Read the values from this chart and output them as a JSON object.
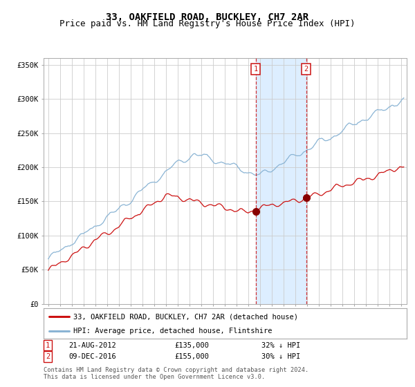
{
  "title": "33, OAKFIELD ROAD, BUCKLEY, CH7 2AR",
  "subtitle": "Price paid vs. HM Land Registry's House Price Index (HPI)",
  "ylim": [
    0,
    360000
  ],
  "xlim_start": 1994.6,
  "xlim_end": 2025.5,
  "yticks": [
    0,
    50000,
    100000,
    150000,
    200000,
    250000,
    300000,
    350000
  ],
  "ytick_labels": [
    "£0",
    "£50K",
    "£100K",
    "£150K",
    "£200K",
    "£250K",
    "£300K",
    "£350K"
  ],
  "hpi_color": "#8ab4d4",
  "price_color": "#cc1111",
  "sale1_date": 2012.64,
  "sale1_price": 135000,
  "sale1_label": "1",
  "sale1_display": "21-AUG-2012",
  "sale1_amount": "£135,000",
  "sale1_pct": "32% ↓ HPI",
  "sale2_date": 2016.94,
  "sale2_price": 155000,
  "sale2_label": "2",
  "sale2_display": "09-DEC-2016",
  "sale2_amount": "£155,000",
  "sale2_pct": "30% ↓ HPI",
  "shade_color": "#ddeeff",
  "legend_label1": "33, OAKFIELD ROAD, BUCKLEY, CH7 2AR (detached house)",
  "legend_label2": "HPI: Average price, detached house, Flintshire",
  "footer": "Contains HM Land Registry data © Crown copyright and database right 2024.\nThis data is licensed under the Open Government Licence v3.0.",
  "background_color": "#ffffff",
  "grid_color": "#cccccc",
  "title_fontsize": 10,
  "subtitle_fontsize": 9,
  "tick_fontsize": 7.5,
  "label_fontsize": 7.5
}
